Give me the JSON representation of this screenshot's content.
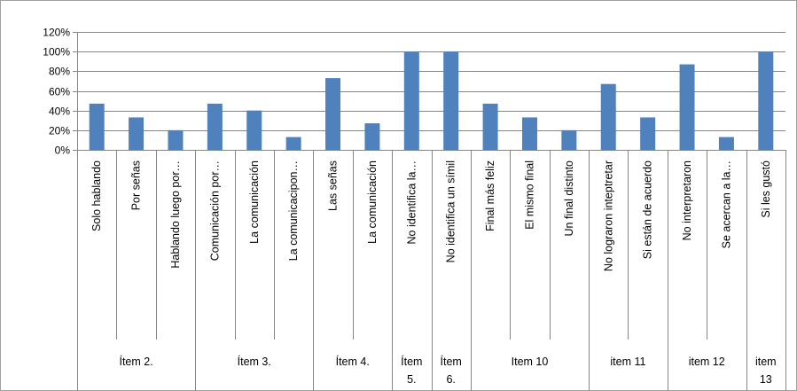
{
  "chart_data": {
    "type": "bar",
    "title": "",
    "xlabel": "",
    "ylabel": "",
    "ylim": [
      0,
      1.2
    ],
    "yticks": [
      "0%",
      "20%",
      "40%",
      "60%",
      "80%",
      "100%",
      "120%"
    ],
    "grid": true,
    "legend": "none",
    "bar_color": "#4F81BD",
    "categories": [
      "Solo hablando",
      "Por señas",
      "Hablando luego por…",
      "Comunicación por…",
      "La comunicación",
      "La comunicacipon…",
      "Las señas",
      "La comunicación",
      "No identifica la…",
      "No identifica un símil",
      "Final más feliz",
      "El mismo final",
      "Un final distinto",
      "No lograron inteptretar",
      "Si están de acuerdo",
      "No interpretaron",
      "Se acercan a la…",
      "Si les gustó"
    ],
    "values": [
      0.47,
      0.33,
      0.2,
      0.47,
      0.4,
      0.13,
      0.73,
      0.27,
      1.0,
      1.0,
      0.47,
      0.33,
      0.2,
      0.67,
      0.33,
      0.87,
      0.13,
      1.0
    ],
    "groups": [
      {
        "label": [
          "Ítem 2."
        ],
        "count": 3
      },
      {
        "label": [
          "Ítem 3."
        ],
        "count": 3
      },
      {
        "label": [
          "Ítem 4."
        ],
        "count": 2
      },
      {
        "label": [
          "Ítem",
          "5."
        ],
        "count": 1
      },
      {
        "label": [
          "Ítem",
          "6."
        ],
        "count": 1
      },
      {
        "label": [
          "Item 10"
        ],
        "count": 3
      },
      {
        "label": [
          "item 11"
        ],
        "count": 2
      },
      {
        "label": [
          "item 12"
        ],
        "count": 2
      },
      {
        "label": [
          "item",
          "13"
        ],
        "count": 1
      }
    ]
  }
}
